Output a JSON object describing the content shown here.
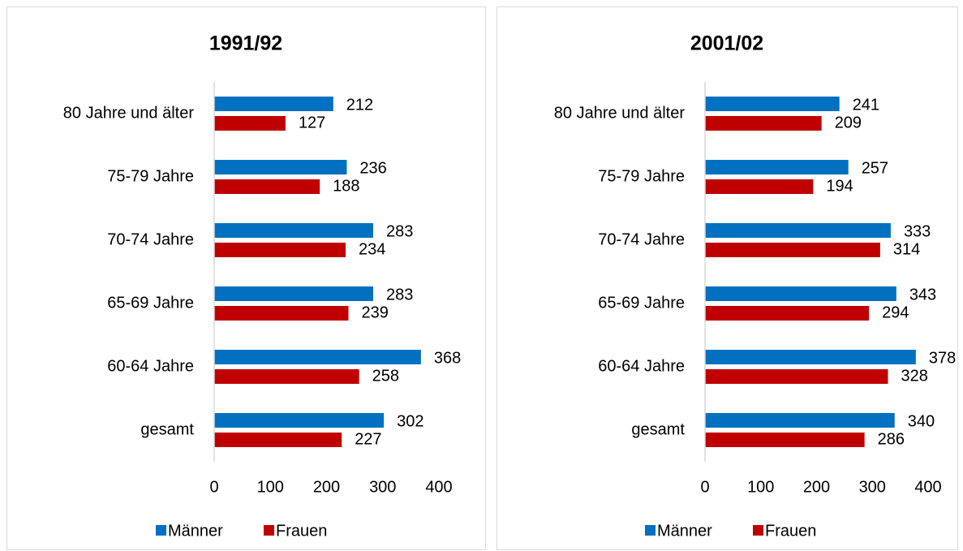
{
  "chart_data": [
    {
      "type": "bar",
      "title": "1991/92",
      "categories": [
        "80 Jahre und älter",
        "75-79 Jahre",
        "70-74 Jahre",
        "65-69 Jahre",
        "60-64 Jahre",
        "gesamt"
      ],
      "series": [
        {
          "name": "Männer",
          "color": "#0070c0",
          "values": [
            212,
            236,
            283,
            283,
            368,
            302
          ]
        },
        {
          "name": "Frauen",
          "color": "#c00000",
          "values": [
            127,
            188,
            234,
            239,
            258,
            227
          ]
        }
      ],
      "xlim": [
        0,
        400
      ],
      "xticks": [
        0,
        100,
        200,
        300,
        400
      ]
    },
    {
      "type": "bar",
      "title": "2001/02",
      "categories": [
        "80 Jahre und älter",
        "75-79 Jahre",
        "70-74 Jahre",
        "65-69 Jahre",
        "60-64 Jahre",
        "gesamt"
      ],
      "series": [
        {
          "name": "Männer",
          "color": "#0070c0",
          "values": [
            241,
            257,
            333,
            343,
            378,
            340
          ]
        },
        {
          "name": "Frauen",
          "color": "#c00000",
          "values": [
            209,
            194,
            314,
            294,
            328,
            286
          ]
        }
      ],
      "xlim": [
        0,
        400
      ],
      "xticks": [
        0,
        100,
        200,
        300,
        400
      ]
    }
  ]
}
